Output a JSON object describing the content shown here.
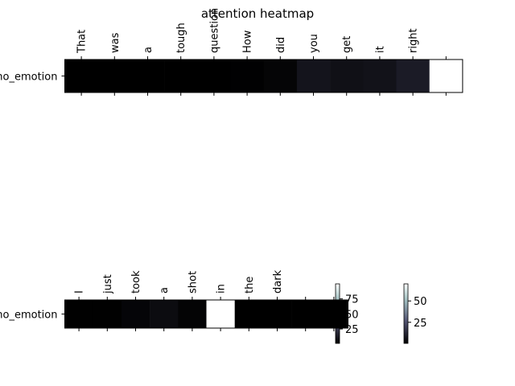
{
  "chart_data": {
    "type": "heatmap",
    "title": "attention heatmap",
    "colormap": "bone",
    "panels": [
      {
        "row_label": "no_emotion",
        "x_tokens": [
          "That",
          "was",
          "a",
          "tough",
          "question",
          "How",
          "did",
          "you",
          "get",
          "it",
          "right",
          ""
        ],
        "values": [
          1,
          1,
          1,
          1,
          1,
          1.5,
          3,
          10,
          8,
          9,
          13,
          100
        ],
        "colorbar_ticks": [
          25,
          50,
          75
        ]
      },
      {
        "row_label": "no_emotion",
        "x_tokens": [
          "I",
          "just",
          "took",
          "a",
          "shot",
          "in",
          "the",
          "dark",
          "",
          ""
        ],
        "values": [
          0.5,
          0.5,
          2,
          4,
          1.5,
          70,
          0.3,
          0.3,
          0.3,
          0.3
        ],
        "colorbar_ticks": [
          25,
          50
        ]
      }
    ]
  }
}
